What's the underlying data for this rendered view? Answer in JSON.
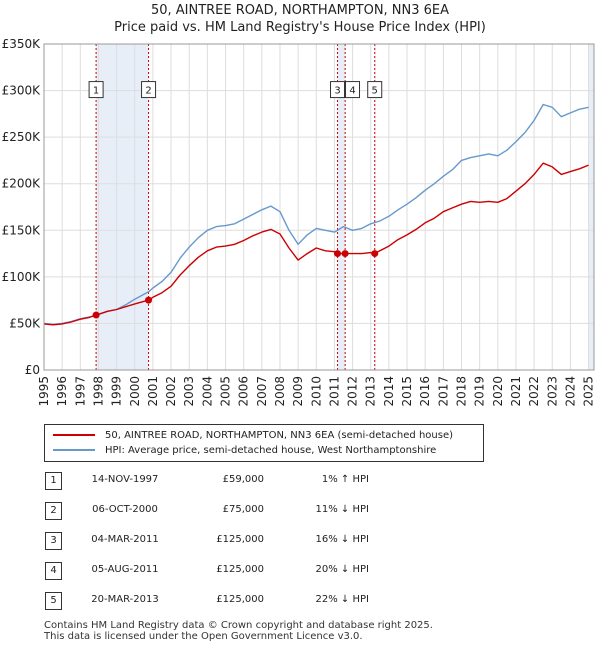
{
  "title_line1": "50, AINTREE ROAD, NORTHAMPTON, NN3 6EA",
  "title_line2": "Price paid vs. HM Land Registry's House Price Index (HPI)",
  "legend": {
    "property_label": "50, AINTREE ROAD, NORTHAMPTON, NN3 6EA (semi-detached house)",
    "hpi_label": "HPI: Average price, semi-detached house, West Northamptonshire"
  },
  "colors": {
    "property": "#cc0000",
    "hpi": "#6699cc",
    "shade": "#e8eef8",
    "grid": "#dddddd",
    "marker_line": "#cc0000"
  },
  "transactions": [
    {
      "num": "1",
      "date": "14-NOV-1997",
      "price": "£59,000",
      "hpi_rel": "1% ↑ HPI"
    },
    {
      "num": "2",
      "date": "06-OCT-2000",
      "price": "£75,000",
      "hpi_rel": "11% ↓ HPI"
    },
    {
      "num": "3",
      "date": "04-MAR-2011",
      "price": "£125,000",
      "hpi_rel": "16% ↓ HPI"
    },
    {
      "num": "4",
      "date": "05-AUG-2011",
      "price": "£125,000",
      "hpi_rel": "20% ↓ HPI"
    },
    {
      "num": "5",
      "date": "20-MAR-2013",
      "price": "£125,000",
      "hpi_rel": "22% ↓ HPI"
    }
  ],
  "footer_line1": "Contains HM Land Registry data © Crown copyright and database right 2025.",
  "footer_line2": "This data is licensed under the Open Government Licence v3.0.",
  "chart_data": {
    "type": "line",
    "title": "50, AINTREE ROAD, NORTHAMPTON, NN3 6EA — Price paid vs. HM Land Registry's House Price Index (HPI)",
    "xlabel": "",
    "ylabel": "",
    "xlim": [
      1995,
      2025.3
    ],
    "ylim": [
      0,
      350000
    ],
    "x_ticks": [
      1995,
      1996,
      1997,
      1998,
      1999,
      2000,
      2001,
      2002,
      2003,
      2004,
      2005,
      2006,
      2007,
      2008,
      2009,
      2010,
      2011,
      2012,
      2013,
      2014,
      2015,
      2016,
      2017,
      2018,
      2019,
      2020,
      2021,
      2022,
      2023,
      2024,
      2025
    ],
    "y_ticks": [
      {
        "value": 0,
        "label": "£0"
      },
      {
        "value": 50000,
        "label": "£50K"
      },
      {
        "value": 100000,
        "label": "£100K"
      },
      {
        "value": 150000,
        "label": "£150K"
      },
      {
        "value": 200000,
        "label": "£200K"
      },
      {
        "value": 250000,
        "label": "£250K"
      },
      {
        "value": 300000,
        "label": "£300K"
      },
      {
        "value": 350000,
        "label": "£350K"
      }
    ],
    "grid": true,
    "sales": [
      {
        "num": "1",
        "x": 1997.87,
        "price": 59000
      },
      {
        "num": "2",
        "x": 2000.76,
        "price": 75000
      },
      {
        "num": "3",
        "x": 2011.17,
        "price": 125000
      },
      {
        "num": "4",
        "x": 2011.59,
        "price": 125000
      },
      {
        "num": "5",
        "x": 2013.22,
        "price": 125000
      }
    ],
    "shaded_ranges": [
      [
        1997.87,
        2000.76
      ],
      [
        2011.17,
        2011.59
      ],
      [
        2013.22,
        2013.22
      ],
      [
        2025.0,
        2025.3
      ]
    ],
    "series": [
      {
        "name": "HPI: Average price, semi-detached house, West Northamptonshire",
        "x": [
          1995.0,
          1995.5,
          1996.0,
          1996.5,
          1997.0,
          1997.5,
          1997.87,
          1998.5,
          1999.0,
          1999.5,
          2000.0,
          2000.76,
          2001.0,
          2001.5,
          2002.0,
          2002.5,
          2003.0,
          2003.5,
          2004.0,
          2004.5,
          2005.0,
          2005.5,
          2006.0,
          2006.5,
          2007.0,
          2007.5,
          2008.0,
          2008.5,
          2009.0,
          2009.5,
          2010.0,
          2010.5,
          2011.0,
          2011.5,
          2012.0,
          2012.5,
          2013.0,
          2013.5,
          2014.0,
          2014.5,
          2015.0,
          2015.5,
          2016.0,
          2016.5,
          2017.0,
          2017.5,
          2018.0,
          2018.5,
          2019.0,
          2019.5,
          2020.0,
          2020.5,
          2021.0,
          2021.5,
          2022.0,
          2022.5,
          2023.0,
          2023.5,
          2024.0,
          2024.5,
          2025.0
        ],
        "values": [
          50000,
          49000,
          50000,
          52000,
          55000,
          57000,
          58500,
          63000,
          65000,
          70000,
          76000,
          84000,
          88000,
          95000,
          105000,
          120000,
          132000,
          142000,
          150000,
          154000,
          155000,
          157000,
          162000,
          167000,
          172000,
          176000,
          170000,
          150000,
          135000,
          145000,
          152000,
          150000,
          148000,
          154000,
          150000,
          152000,
          157000,
          160000,
          165000,
          172000,
          178000,
          185000,
          193000,
          200000,
          208000,
          215000,
          225000,
          228000,
          230000,
          232000,
          230000,
          236000,
          245000,
          255000,
          268000,
          285000,
          282000,
          272000,
          276000,
          280000,
          282000
        ]
      },
      {
        "name": "50, AINTREE ROAD, NORTHAMPTON, NN3 6EA (semi-detached house)",
        "x": [
          1995.0,
          1995.5,
          1996.0,
          1996.5,
          1997.0,
          1997.5,
          1997.87,
          1998.5,
          1999.0,
          1999.5,
          2000.0,
          2000.76,
          2001.0,
          2001.5,
          2002.0,
          2002.5,
          2003.0,
          2003.5,
          2004.0,
          2004.5,
          2005.0,
          2005.5,
          2006.0,
          2006.5,
          2007.0,
          2007.5,
          2008.0,
          2008.5,
          2009.0,
          2009.5,
          2010.0,
          2010.5,
          2011.0,
          2011.17,
          2011.59,
          2012.0,
          2012.5,
          2013.0,
          2013.22,
          2013.5,
          2014.0,
          2014.5,
          2015.0,
          2015.5,
          2016.0,
          2016.5,
          2017.0,
          2017.5,
          2018.0,
          2018.5,
          2019.0,
          2019.5,
          2020.0,
          2020.5,
          2021.0,
          2021.5,
          2022.0,
          2022.5,
          2023.0,
          2023.5,
          2024.0,
          2024.5,
          2025.0
        ],
        "values": [
          49500,
          48500,
          49500,
          51500,
          54500,
          56500,
          59000,
          63000,
          65000,
          68000,
          71000,
          75000,
          78000,
          83000,
          90000,
          102000,
          112000,
          121000,
          128000,
          132000,
          133000,
          135000,
          139000,
          144000,
          148000,
          151000,
          146000,
          131000,
          118000,
          125000,
          131000,
          128000,
          127000,
          125000,
          125000,
          125000,
          125000,
          126000,
          125000,
          128000,
          133000,
          140000,
          145000,
          151000,
          158000,
          163000,
          170000,
          174000,
          178000,
          181000,
          180000,
          181000,
          180000,
          184000,
          192000,
          200000,
          210000,
          222000,
          218000,
          210000,
          213000,
          216000,
          220000
        ]
      }
    ]
  }
}
